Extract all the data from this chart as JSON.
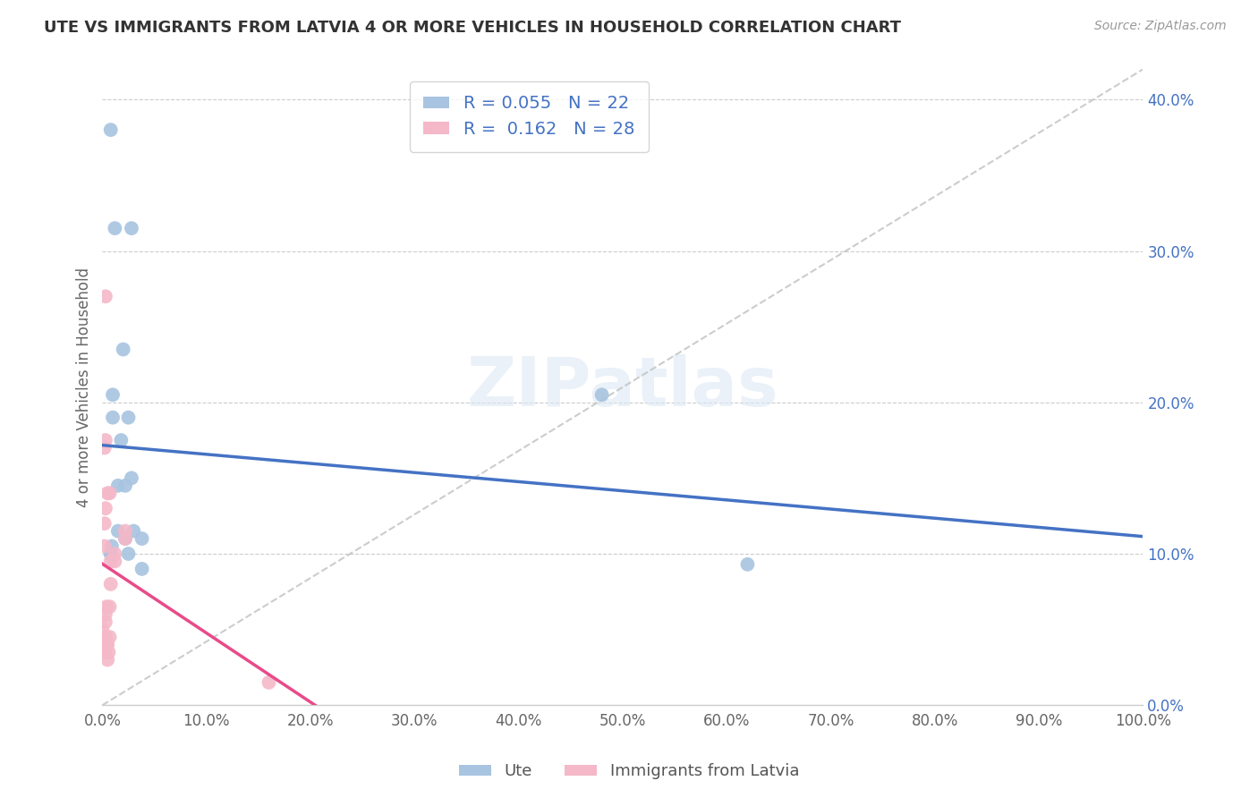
{
  "title": "UTE VS IMMIGRANTS FROM LATVIA 4 OR MORE VEHICLES IN HOUSEHOLD CORRELATION CHART",
  "source": "Source: ZipAtlas.com",
  "ylabel": "4 or more Vehicles in Household",
  "xlim": [
    0,
    1.0
  ],
  "ylim": [
    0,
    0.42
  ],
  "xticks": [
    0.0,
    0.1,
    0.2,
    0.3,
    0.4,
    0.5,
    0.6,
    0.7,
    0.8,
    0.9,
    1.0
  ],
  "yticks": [
    0.0,
    0.1,
    0.2,
    0.3,
    0.4
  ],
  "ute_R": 0.055,
  "ute_N": 22,
  "latvia_R": 0.162,
  "latvia_N": 28,
  "ute_color": "#a8c4e0",
  "latvia_color": "#f4b8c8",
  "ute_line_color": "#4472C4",
  "latvia_line_color": "#E84B8A",
  "diag_line_color": "#c0c0c0",
  "watermark": "ZIPatlas",
  "legend_label_ute": "Ute",
  "legend_label_latvia": "Immigrants from Latvia",
  "ute_x": [
    0.008,
    0.012,
    0.028,
    0.01,
    0.02,
    0.025,
    0.018,
    0.015,
    0.022,
    0.028,
    0.015,
    0.022,
    0.03,
    0.025,
    0.038,
    0.038,
    0.008,
    0.008,
    0.009,
    0.62,
    0.01,
    0.48
  ],
  "ute_y": [
    0.38,
    0.315,
    0.315,
    0.205,
    0.235,
    0.19,
    0.175,
    0.145,
    0.145,
    0.15,
    0.115,
    0.11,
    0.115,
    0.1,
    0.11,
    0.09,
    0.1,
    0.1,
    0.105,
    0.093,
    0.19,
    0.205
  ],
  "latvia_x": [
    0.0,
    0.003,
    0.004,
    0.002,
    0.005,
    0.007,
    0.005,
    0.003,
    0.004,
    0.006,
    0.003,
    0.004,
    0.007,
    0.012,
    0.012,
    0.008,
    0.008,
    0.007,
    0.005,
    0.002,
    0.002,
    0.003,
    0.002,
    0.003,
    0.003,
    0.022,
    0.022,
    0.16
  ],
  "latvia_y": [
    0.05,
    0.045,
    0.04,
    0.035,
    0.03,
    0.045,
    0.04,
    0.055,
    0.04,
    0.035,
    0.06,
    0.065,
    0.065,
    0.1,
    0.095,
    0.095,
    0.08,
    0.14,
    0.14,
    0.12,
    0.105,
    0.13,
    0.17,
    0.175,
    0.27,
    0.115,
    0.11,
    0.015
  ]
}
